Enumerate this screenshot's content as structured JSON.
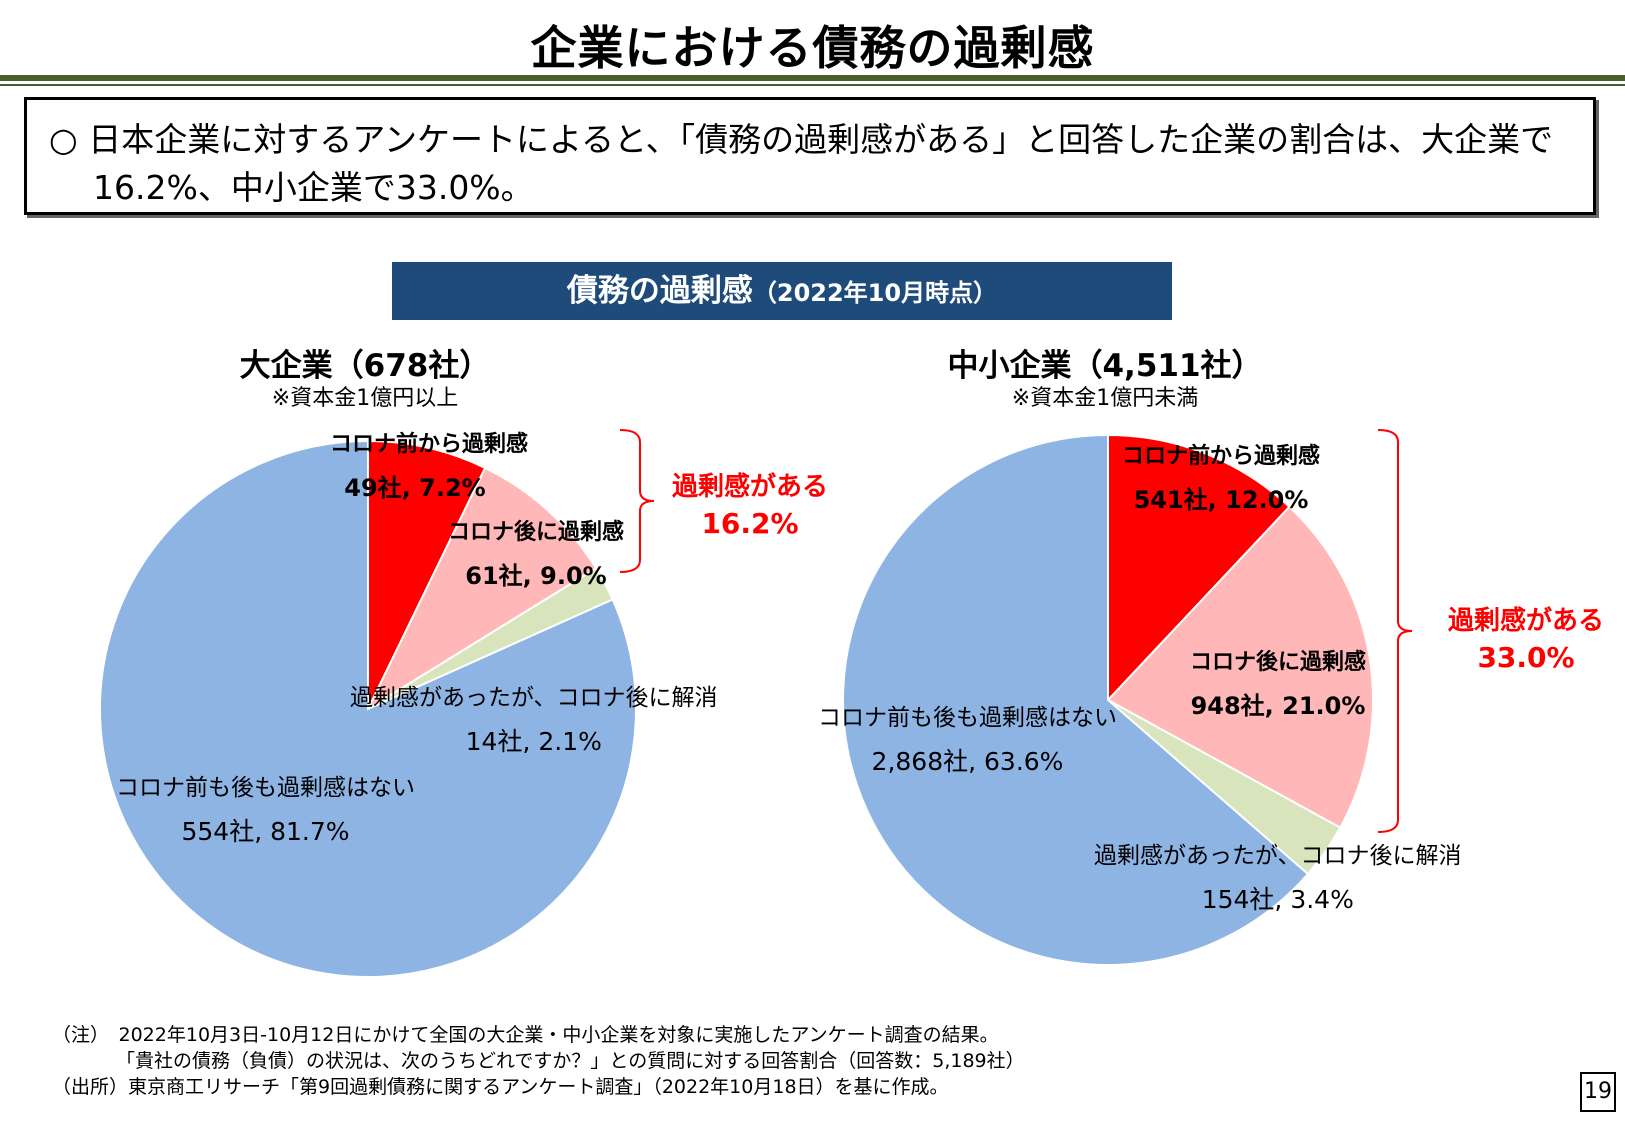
{
  "title": "企業における債務の過剰感",
  "summary": {
    "bullet": "○",
    "line1": "日本企業に対するアンケートによると、「債務の過剰感がある」と回答した企業の割合は、大企業で",
    "line2": "16.2%、中小企業で33.0%。"
  },
  "chart_banner": {
    "main": "債務の過剰感",
    "sub": "（2022年10月時点）"
  },
  "chart_data": [
    {
      "type": "pie",
      "title": "大企業（678社）",
      "subtitle": "※資本金1億円以上",
      "slices": [
        {
          "name": "コロナ前から過剰感",
          "label": "49社, 7.2%",
          "count": 49,
          "value": 7.2,
          "color": "#ff0000"
        },
        {
          "name": "コロナ後に過剰感",
          "label": "61社, 9.0%",
          "count": 61,
          "value": 9.0,
          "color": "#ffb7b7"
        },
        {
          "name": "過剰感があったが、コロナ後に解消",
          "label": "14社, 2.1%",
          "count": 14,
          "value": 2.1,
          "color": "#d8e4bc"
        },
        {
          "name": "コロナ前も後も過剰感はない",
          "label": "554社, 81.7%",
          "count": 554,
          "value": 81.7,
          "color": "#8eb4e3"
        }
      ],
      "bracket": {
        "text": "過剰感がある",
        "value": "16.2%"
      }
    },
    {
      "type": "pie",
      "title": "中小企業（4,511社）",
      "subtitle": "※資本金1億円未満",
      "slices": [
        {
          "name": "コロナ前から過剰感",
          "label": "541社, 12.0%",
          "count": 541,
          "value": 12.0,
          "color": "#ff0000"
        },
        {
          "name": "コロナ後に過剰感",
          "label": "948社, 21.0%",
          "count": 948,
          "value": 21.0,
          "color": "#ffb7b7"
        },
        {
          "name": "過剰感があったが、コロナ後に解消",
          "label": "154社, 3.4%",
          "count": 154,
          "value": 3.4,
          "color": "#d8e4bc"
        },
        {
          "name": "コロナ前も後も過剰感はない",
          "label": "2,868社, 63.6%",
          "count": 2868,
          "value": 63.6,
          "color": "#8eb4e3"
        }
      ],
      "bracket": {
        "text": "過剰感がある",
        "value": "33.0%"
      }
    }
  ],
  "notes": {
    "note1": "（注）　2022年10月3日-10月12日にかけて全国の大企業・中小企業を対象に実施したアンケート調査の結果。",
    "note2": "「貴社の債務（負債）の状況は、次のうちどれですか？」との質問に対する回答割合（回答数：5,189社）",
    "source": "（出所）東京商工リサーチ「第9回過剰債務に関するアンケート調査」（2022年10月18日）を基に作成。"
  },
  "page_number": "19"
}
